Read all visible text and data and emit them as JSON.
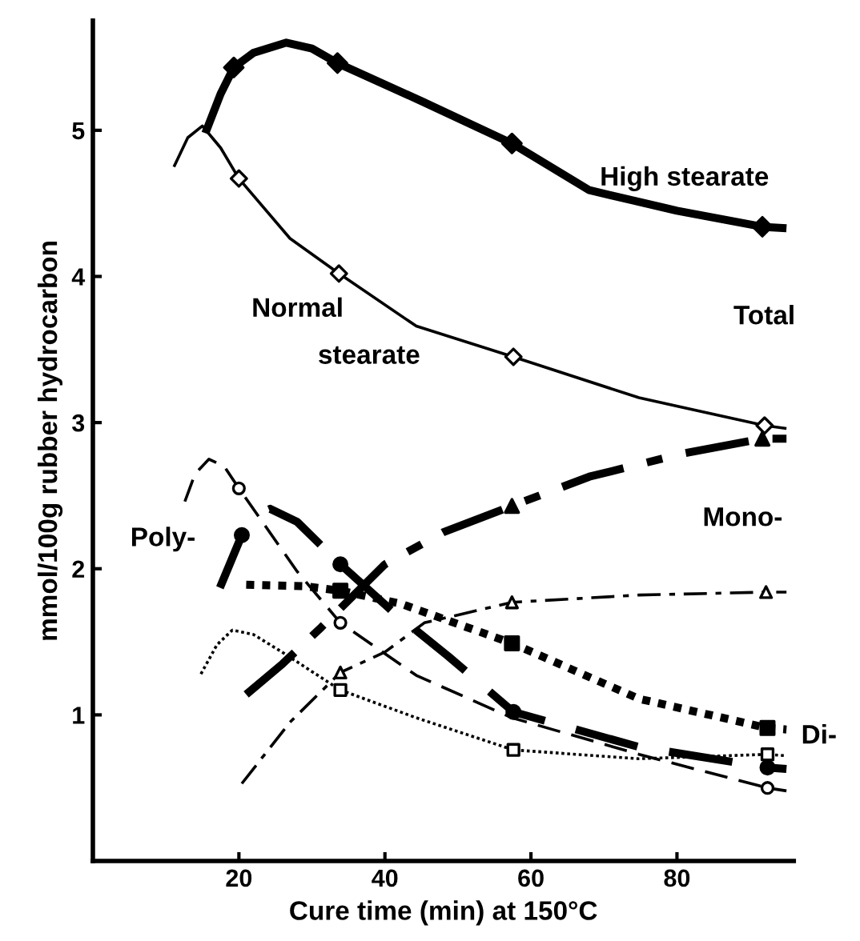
{
  "chart_data": {
    "type": "line",
    "xlabel": "Cure time (min) at 150°C",
    "ylabel": "mmol/100g rubber hydrocarbon",
    "xlim": [
      0,
      96
    ],
    "ylim": [
      0,
      5.75
    ],
    "xticks": [
      20,
      40,
      60,
      80
    ],
    "yticks": [
      1,
      2,
      3,
      4,
      5
    ],
    "grid": false,
    "series": [
      {
        "line_style": "solid",
        "color": "#000000",
        "x": [
          15.4,
          17.5,
          19.3,
          22,
          26.5,
          30,
          33.5,
          45,
          57.4,
          68,
          80,
          91.7,
          95
        ],
        "values": [
          4.98,
          5.25,
          5.43,
          5.53,
          5.6,
          5.56,
          5.46,
          5.2,
          4.91,
          4.59,
          4.45,
          4.34,
          4.33
        ]
      },
      {
        "type": "scatter",
        "marker": "diamond",
        "color": "#000000",
        "x": [
          19.3,
          33.5,
          57.4,
          91.7
        ],
        "values": [
          5.43,
          5.46,
          4.91,
          4.34
        ]
      },
      {
        "line_style": "solid",
        "color": "#000000",
        "x": [
          11.1,
          13,
          15,
          17.5,
          20,
          27,
          33.7,
          44.3,
          57.6,
          74.8,
          92,
          95
        ],
        "values": [
          4.75,
          4.95,
          5.03,
          4.88,
          4.67,
          4.26,
          4.02,
          3.66,
          3.45,
          3.17,
          2.98,
          2.96
        ]
      },
      {
        "type": "scatter",
        "marker": "diamond",
        "color": "#000000",
        "x": [
          20,
          33.7,
          57.6,
          92
        ],
        "values": [
          4.67,
          4.02,
          3.45,
          2.98
        ]
      },
      {
        "line_style": "dashdot",
        "color": "#000000",
        "x": [
          21,
          26,
          31.3,
          40,
          48,
          57.4,
          68,
          81,
          91.7,
          95
        ],
        "values": [
          1.14,
          1.35,
          1.6,
          2.03,
          2.25,
          2.43,
          2.63,
          2.79,
          2.89,
          2.89
        ]
      },
      {
        "type": "scatter",
        "marker": "triangle",
        "color": "#000000",
        "x": [
          57.4,
          91.7
        ],
        "values": [
          2.43,
          2.89
        ]
      },
      {
        "line_style": "dashdot",
        "color": "#000000",
        "x": [
          20.4,
          27,
          33.9,
          40,
          45.4,
          57.4,
          74.8,
          92.2,
          95
        ],
        "values": [
          0.53,
          0.95,
          1.29,
          1.43,
          1.63,
          1.77,
          1.82,
          1.84,
          1.84
        ]
      },
      {
        "type": "scatter",
        "marker": "triangle",
        "color": "#000000",
        "x": [
          33.9,
          57.4,
          92.2
        ],
        "values": [
          1.29,
          1.77,
          1.84
        ]
      },
      {
        "line_style": "dashed",
        "color": "#000000",
        "x": [
          17.4,
          20.4,
          22,
          24.3,
          28,
          33.9,
          41,
          48.7,
          57.6,
          74.8,
          92.4,
          95
        ],
        "values": [
          1.87,
          2.23,
          2.36,
          2.41,
          2.32,
          2.03,
          1.71,
          1.4,
          1.02,
          0.78,
          0.64,
          0.63
        ]
      },
      {
        "type": "scatter",
        "marker": "circle",
        "color": "#000000",
        "x": [
          20.4,
          33.9,
          57.6,
          92.4
        ],
        "values": [
          2.23,
          2.03,
          1.02,
          0.64
        ]
      },
      {
        "line_style": "dashed",
        "color": "#000000",
        "x": [
          12.6,
          14,
          15.9,
          18,
          20,
          28,
          33.9,
          44.3,
          57.4,
          74.8,
          92.4,
          95
        ],
        "values": [
          2.46,
          2.65,
          2.75,
          2.7,
          2.55,
          1.98,
          1.63,
          1.27,
          0.98,
          0.73,
          0.5,
          0.48
        ]
      },
      {
        "type": "scatter",
        "marker": "circle",
        "color": "#000000",
        "x": [
          20,
          33.9,
          92.4
        ],
        "values": [
          2.55,
          1.63,
          0.5
        ]
      },
      {
        "line_style": "dotted",
        "color": "#000000",
        "x": [
          21,
          29,
          33.9,
          42.2,
          57.4,
          74.8,
          92.4,
          95
        ],
        "values": [
          1.89,
          1.88,
          1.85,
          1.76,
          1.49,
          1.11,
          0.91,
          0.9
        ]
      },
      {
        "type": "scatter",
        "marker": "square",
        "color": "#000000",
        "x": [
          33.9,
          57.4,
          92.4
        ],
        "values": [
          1.85,
          1.49,
          0.91
        ]
      },
      {
        "line_style": "dotted",
        "color": "#000000",
        "x": [
          14.8,
          17,
          19.1,
          22,
          25.9,
          33.9,
          44.3,
          57.6,
          74.8,
          92.4,
          95
        ],
        "values": [
          1.28,
          1.48,
          1.58,
          1.55,
          1.43,
          1.17,
          0.98,
          0.76,
          0.7,
          0.73,
          0.72
        ]
      },
      {
        "type": "scatter",
        "marker": "square",
        "color": "#000000",
        "x": [
          33.9,
          57.6,
          92.4
        ],
        "values": [
          1.17,
          0.76,
          0.73
        ]
      }
    ],
    "annotations": [
      "High stearate",
      "Normal",
      "stearate",
      "Total",
      "Mono-",
      "Poly-",
      "Di-"
    ]
  }
}
